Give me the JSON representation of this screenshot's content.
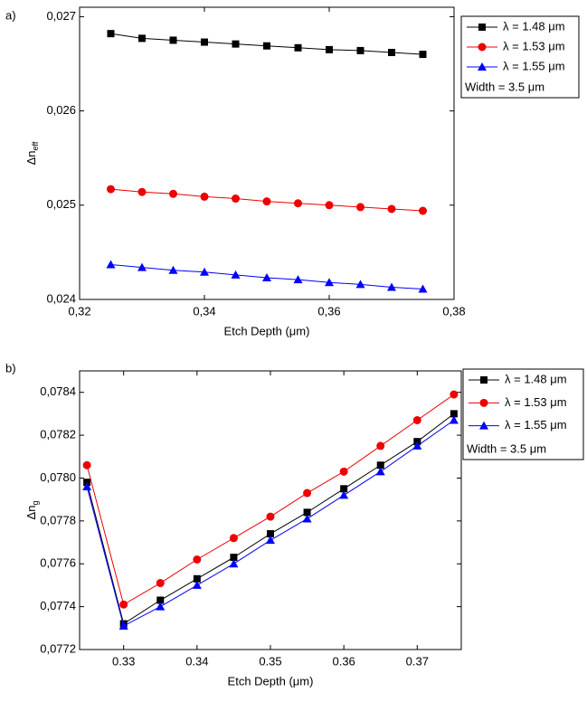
{
  "chart_data": [
    {
      "type": "line",
      "panel_label": "a)",
      "xlabel": "Etch Depth (μm)",
      "ylabel": "Δn",
      "ylabel_sub": "eff",
      "x": [
        0.325,
        0.33,
        0.335,
        0.34,
        0.345,
        0.35,
        0.355,
        0.36,
        0.365,
        0.37,
        0.375
      ],
      "xlim": [
        0.32,
        0.38
      ],
      "xticks": [
        {
          "value": 0.32,
          "label": "0,32"
        },
        {
          "value": 0.34,
          "label": "0,34"
        },
        {
          "value": 0.36,
          "label": "0,36"
        },
        {
          "value": 0.38,
          "label": "0,38"
        }
      ],
      "ylim": [
        0.024,
        0.0271
      ],
      "yticks": [
        {
          "value": 0.024,
          "label": "0,024"
        },
        {
          "value": 0.025,
          "label": "0,025"
        },
        {
          "value": 0.026,
          "label": "0,026"
        },
        {
          "value": 0.027,
          "label": "0,027"
        }
      ],
      "series": [
        {
          "name": "λ = 1.48 μm",
          "color": "#000000",
          "marker": "square",
          "values": [
            0.02682,
            0.02677,
            0.02675,
            0.02673,
            0.02671,
            0.02669,
            0.02667,
            0.02665,
            0.02664,
            0.02662,
            0.0266
          ]
        },
        {
          "name": "λ = 1.53 μm",
          "color": "#ee0000",
          "marker": "circle",
          "values": [
            0.02517,
            0.02514,
            0.02512,
            0.02509,
            0.02507,
            0.02504,
            0.02502,
            0.025,
            0.02498,
            0.02496,
            0.02494
          ]
        },
        {
          "name": "λ = 1.55 μm",
          "color": "#0000ff",
          "marker": "triangle",
          "values": [
            0.02437,
            0.02434,
            0.02431,
            0.02429,
            0.02426,
            0.02423,
            0.02421,
            0.02418,
            0.02416,
            0.02413,
            0.02411
          ]
        }
      ],
      "legend_note": "Width = 3.5 μm",
      "legend": "outside-right"
    },
    {
      "type": "line",
      "panel_label": "b)",
      "xlabel": "Etch Depth (μm)",
      "ylabel": "Δn",
      "ylabel_sub": "g",
      "x": [
        0.325,
        0.33,
        0.335,
        0.34,
        0.345,
        0.35,
        0.355,
        0.36,
        0.365,
        0.37,
        0.375
      ],
      "xlim": [
        0.324,
        0.376
      ],
      "xticks": [
        0.33,
        0.34,
        0.35,
        0.36,
        0.37
      ],
      "ylim": [
        0.0772,
        0.0785
      ],
      "yticks": [
        {
          "value": 0.0772,
          "label": "0,0772"
        },
        {
          "value": 0.0774,
          "label": "0,0774"
        },
        {
          "value": 0.0776,
          "label": "0,0776"
        },
        {
          "value": 0.0778,
          "label": "0,0778"
        },
        {
          "value": 0.078,
          "label": "0,0780"
        },
        {
          "value": 0.0782,
          "label": "0,0782"
        },
        {
          "value": 0.0784,
          "label": "0,0784"
        }
      ],
      "series": [
        {
          "name": "λ = 1.48 μm",
          "color": "#000000",
          "marker": "square",
          "values": [
            0.07798,
            0.07732,
            0.07743,
            0.07753,
            0.07763,
            0.07774,
            0.07784,
            0.07795,
            0.07806,
            0.07817,
            0.0783
          ]
        },
        {
          "name": "λ = 1.53 μm",
          "color": "#ee0000",
          "marker": "circle",
          "values": [
            0.07806,
            0.07741,
            0.07751,
            0.07762,
            0.07772,
            0.07782,
            0.07793,
            0.07803,
            0.07815,
            0.07827,
            0.07839
          ]
        },
        {
          "name": "λ = 1.55 μm",
          "color": "#0000ff",
          "marker": "triangle",
          "values": [
            0.07796,
            0.07731,
            0.0774,
            0.0775,
            0.0776,
            0.07771,
            0.07781,
            0.07792,
            0.07803,
            0.07815,
            0.07827
          ]
        }
      ],
      "legend_note": "Width = 3.5 μm",
      "legend": "outside-right"
    }
  ]
}
